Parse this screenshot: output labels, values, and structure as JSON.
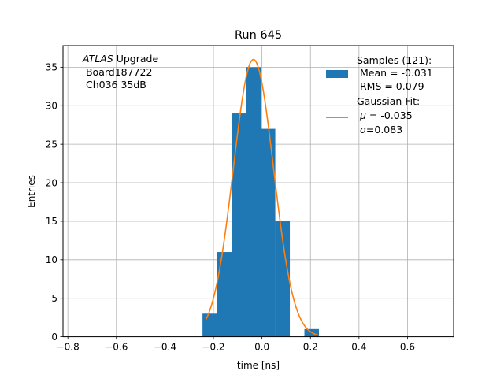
{
  "chart_data": {
    "type": "bar",
    "title": "Run 645",
    "xlabel": "time [ns]",
    "ylabel": "Entries",
    "xlim": [
      -0.82,
      0.79
    ],
    "ylim": [
      0,
      37.8
    ],
    "grid": true,
    "x_ticks": [
      -0.8,
      -0.6,
      -0.4,
      -0.2,
      0.0,
      0.2,
      0.4,
      0.6
    ],
    "x_tick_labels": [
      "−0.8",
      "−0.6",
      "−0.4",
      "−0.2",
      "0.0",
      "0.2",
      "0.4",
      "0.6"
    ],
    "y_ticks": [
      0,
      5,
      10,
      15,
      20,
      25,
      30,
      35
    ],
    "y_tick_labels": [
      "0",
      "5",
      "10",
      "15",
      "20",
      "25",
      "30",
      "35"
    ],
    "histogram": {
      "name": "Samples (121):",
      "color": "#1f77b4",
      "bin_width": 0.06,
      "bins": [
        {
          "x0": -0.245,
          "value": 3
        },
        {
          "x0": -0.185,
          "value": 11
        },
        {
          "x0": -0.125,
          "value": 29
        },
        {
          "x0": -0.065,
          "value": 35
        },
        {
          "x0": -0.005,
          "value": 27
        },
        {
          "x0": 0.055,
          "value": 15
        },
        {
          "x0": 0.115,
          "value": 0
        },
        {
          "x0": 0.175,
          "value": 1
        }
      ]
    },
    "fit": {
      "name": "Gaussian Fit:",
      "color": "#ff7f0e",
      "mu": -0.035,
      "sigma": 0.083,
      "amplitude": 36,
      "x_range": [
        -0.23,
        0.23
      ]
    },
    "legend": {
      "position": "top-right",
      "entries": [
        {
          "lines": [
            "Samples (121):",
            " Mean = -0.031",
            " RMS = 0.079"
          ]
        },
        {
          "lines": [
            "Gaussian Fit:",
            "",
            ""
          ]
        }
      ],
      "fit_mu_prefix": " μ",
      "fit_mu_value": " = -0.035",
      "fit_sigma_prefix": " σ",
      "fit_sigma_value": "=0.083"
    },
    "annotation": {
      "atlas": "ATLAS",
      "upgrade": " Upgrade",
      "line2": " Board187722",
      "line3": " Ch036 35dB"
    }
  }
}
